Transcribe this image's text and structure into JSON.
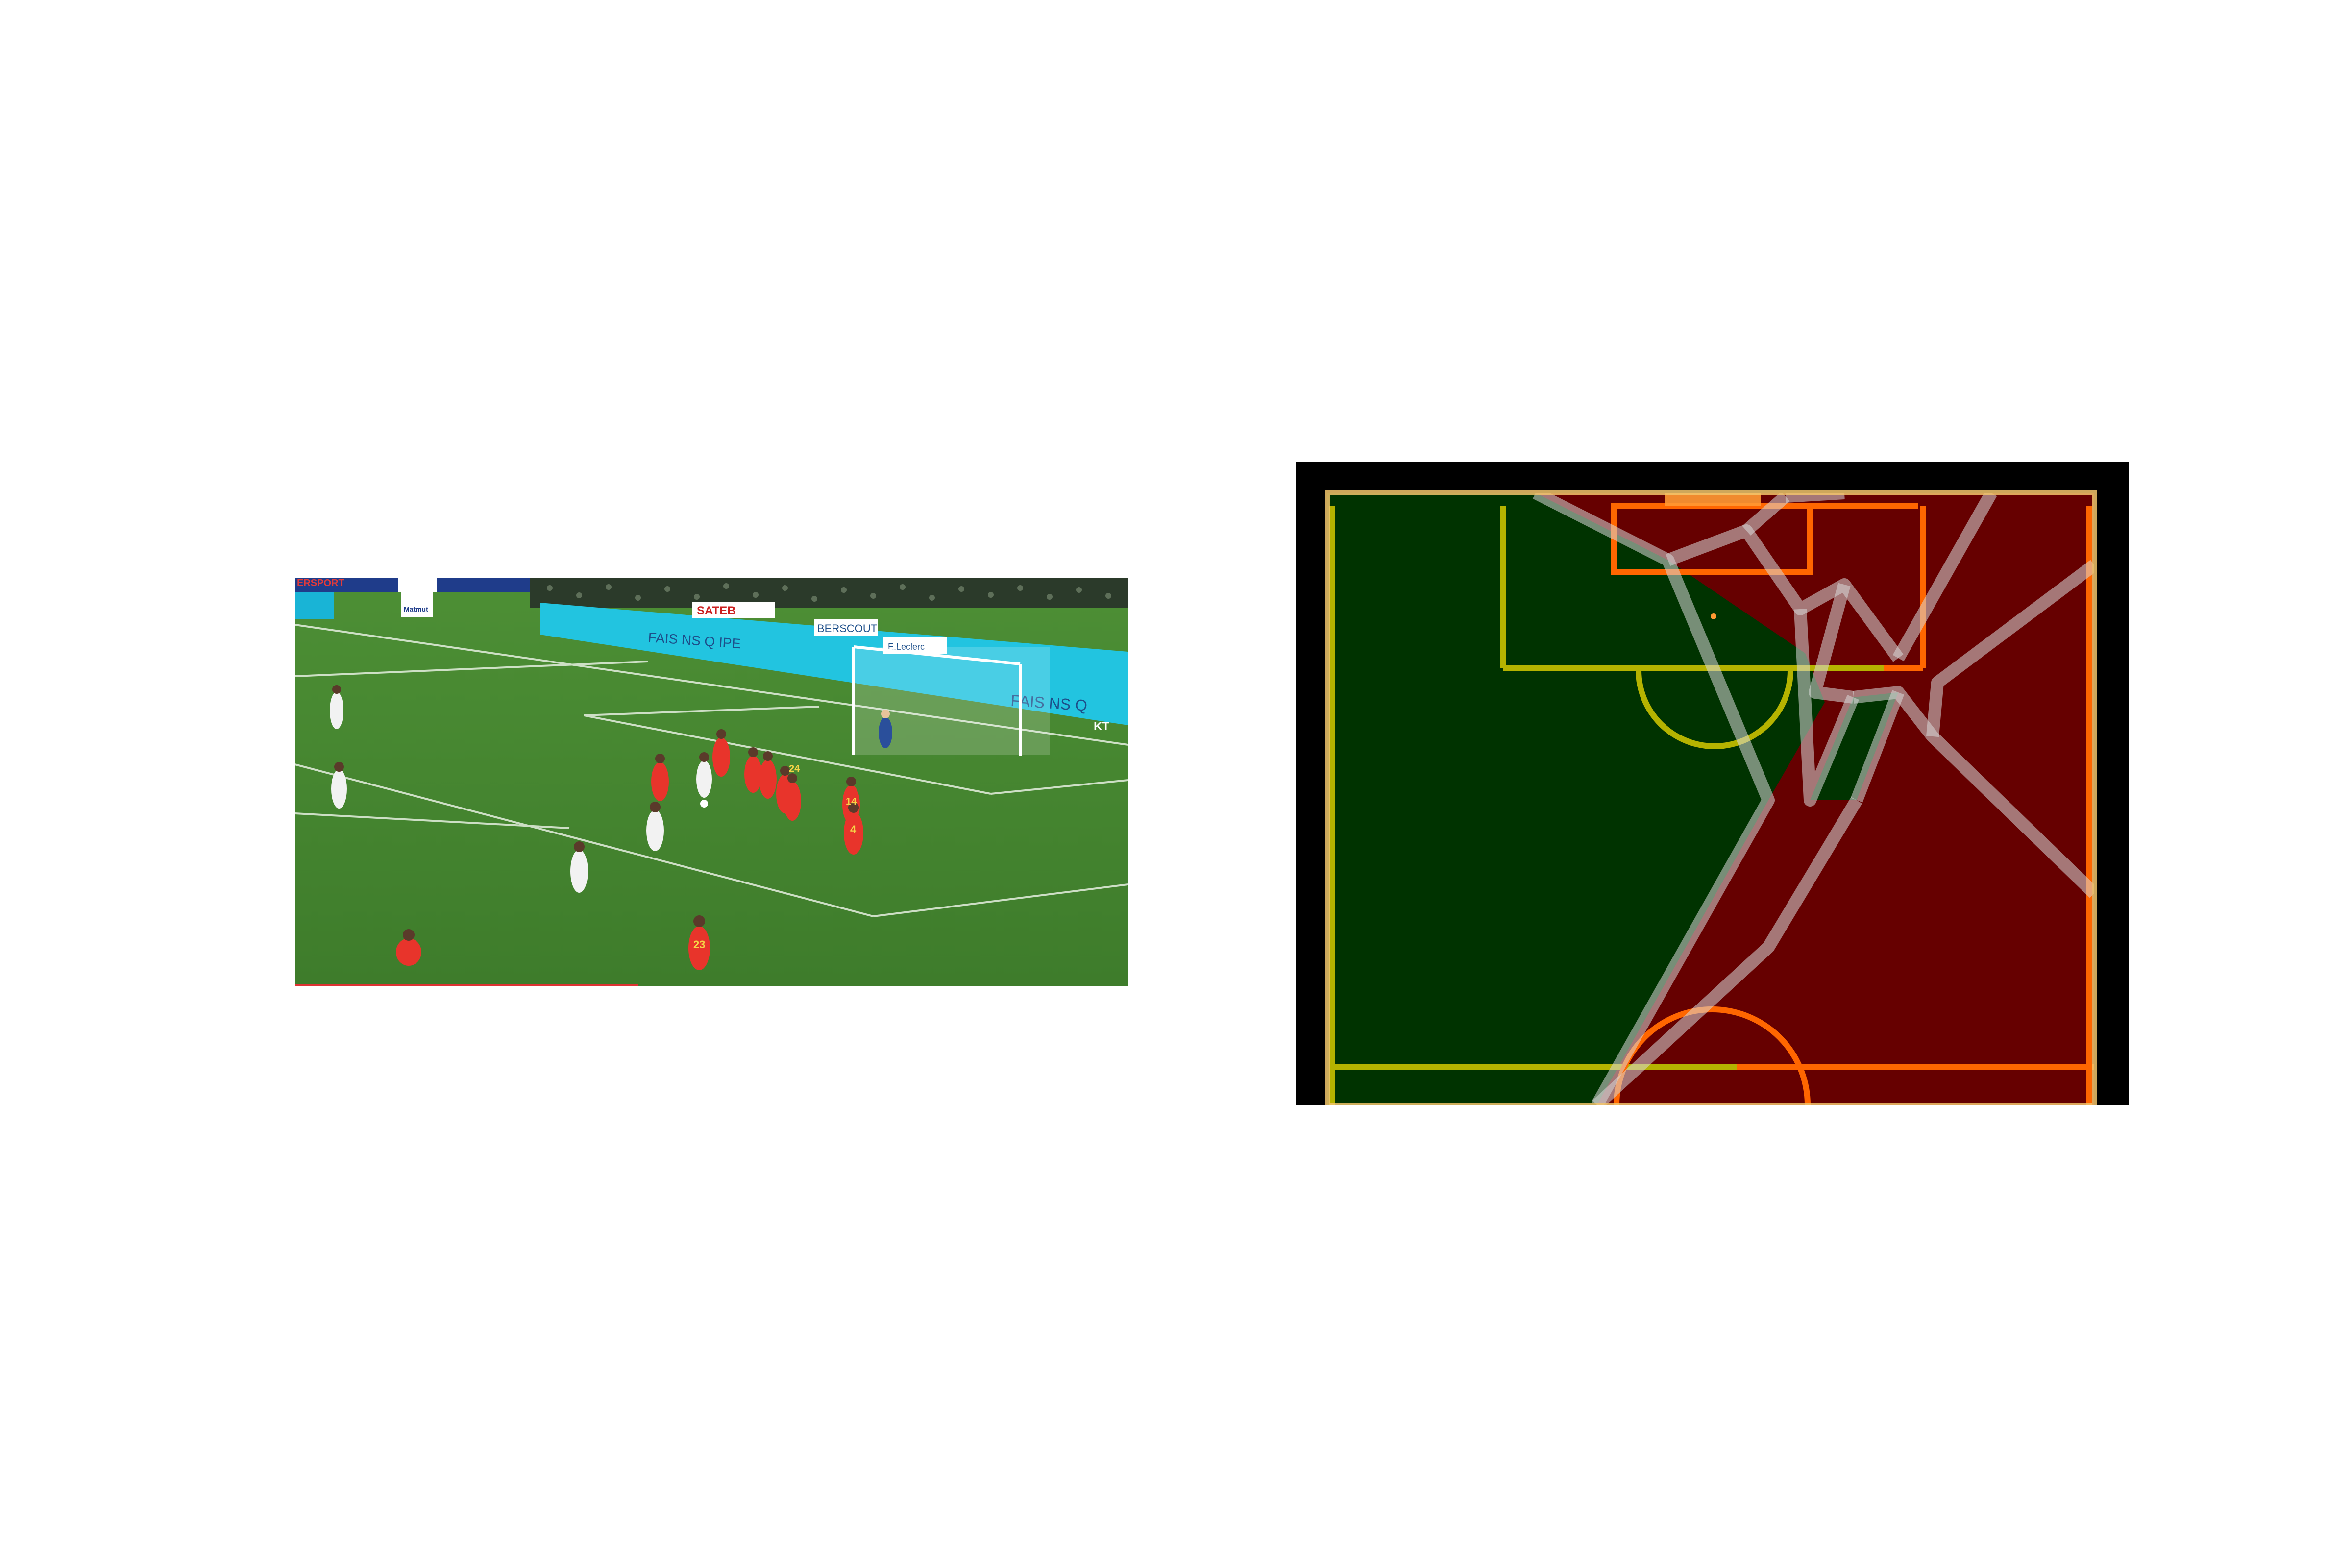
{
  "left_panel": {
    "stadium": {
      "board_texts": [
        "ERSPORT",
        "Matmut",
        "SATEB",
        "BERSCOUT",
        "E.Leclerc",
        "FAIS NS Q IPE",
        "FAIS NS Q",
        "KT"
      ]
    },
    "players": {
      "home_color": "#e8342b",
      "away_color": "#f2f2f2",
      "keeper_color": "#2a4f9b",
      "shirt_numbers": [
        "24",
        "14",
        "4",
        "23"
      ]
    }
  },
  "right_panel": {
    "colors": {
      "background": "#000000",
      "team_a_region": "#003300",
      "team_b_region": "#660000",
      "team_a_lines": "#b5b300",
      "team_b_lines": "#ff6600",
      "boundary": "#f2c46b",
      "voronoi_edges": "#d9d9d9"
    },
    "legend": []
  }
}
